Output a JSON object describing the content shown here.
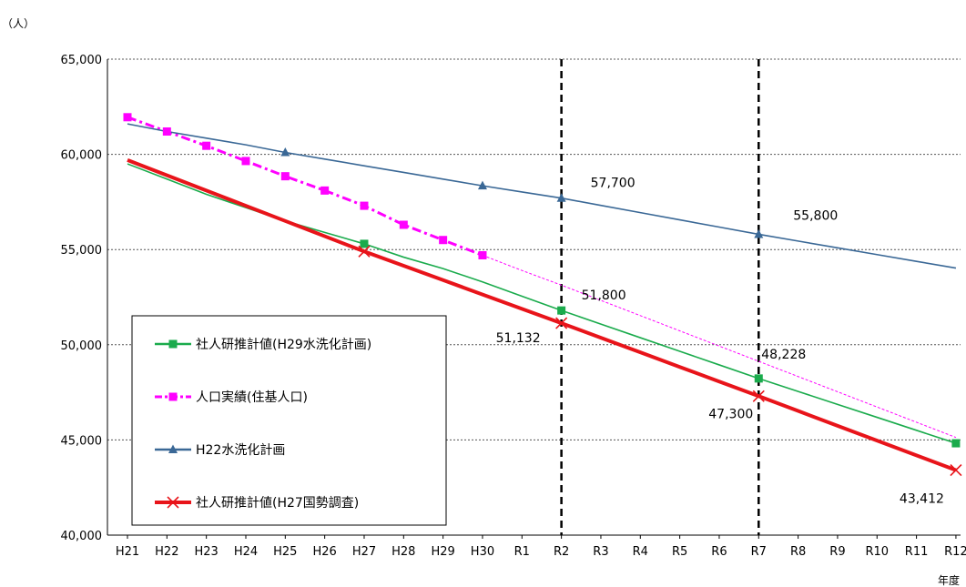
{
  "chart_data": {
    "type": "line",
    "title": "",
    "y_unit_label": "（人）",
    "x_unit_label": "年度",
    "categories": [
      "H21",
      "H22",
      "H23",
      "H24",
      "H25",
      "H26",
      "H27",
      "H28",
      "H29",
      "H30",
      "R1",
      "R2",
      "R3",
      "R4",
      "R5",
      "R6",
      "R7",
      "R8",
      "R9",
      "R10",
      "R11",
      "R12"
    ],
    "ylim": [
      40000,
      65000
    ],
    "yticks": [
      40000,
      45000,
      50000,
      55000,
      60000,
      65000
    ],
    "ytick_labels": [
      "40,000",
      "45,000",
      "50,000",
      "55,000",
      "60,000",
      "65,000"
    ],
    "grid": "horizontal dashed",
    "vertical_reference_lines": [
      "R2",
      "R7"
    ],
    "legend_position": "lower-left inside plot",
    "series": [
      {
        "name": "社人研推計値(H29水洗化計画)",
        "color": "#1aab4c",
        "style": "solid",
        "marker": "square",
        "values": [
          59500,
          58700,
          57900,
          57200,
          56500,
          55900,
          55300,
          54600,
          54000,
          53300,
          52550,
          51800,
          51085,
          50370,
          49656,
          48942,
          48228,
          47548,
          46867,
          46187,
          45506,
          44825
        ],
        "marker_indices": [
          6,
          11,
          16,
          21
        ]
      },
      {
        "name": "人口実績(住基人口)",
        "color": "#ff00ff",
        "style": "dash-dot",
        "marker": "square",
        "values": [
          61950,
          61200,
          60450,
          59650,
          58850,
          58100,
          57300,
          56300,
          55500,
          54700,
          53900,
          53130,
          52330,
          51530,
          50730,
          49930,
          49130,
          48330,
          47530,
          46730,
          45930,
          45130
        ],
        "solid_through_index": 9,
        "marker_indices": [
          0,
          1,
          2,
          3,
          4,
          5,
          6,
          7,
          8,
          9
        ]
      },
      {
        "name": "H22水洗化計画",
        "color": "#3a6896",
        "style": "solid",
        "marker": "triangle",
        "values": [
          61600,
          61200,
          60850,
          60500,
          60100,
          59750,
          59400,
          59050,
          58700,
          58350,
          58025,
          57700,
          57320,
          56940,
          56560,
          56180,
          55800,
          55445,
          55090,
          54735,
          54380,
          54025
        ],
        "marker_indices": [
          4,
          9,
          11,
          16
        ]
      },
      {
        "name": "社人研推計値(H27国勢調査)",
        "color": "#e8141a",
        "style": "solid-thick",
        "marker": "x",
        "values": [
          59700,
          58900,
          58100,
          57300,
          56500,
          55700,
          54900,
          54148,
          53394,
          52640,
          51886,
          51132,
          50366,
          49600,
          48833,
          48066,
          47300,
          46522,
          45744,
          44967,
          44190,
          43412
        ],
        "marker_indices": [
          6,
          11,
          16,
          21
        ]
      }
    ],
    "annotations": [
      {
        "text": "57,700",
        "category": "R2",
        "value": 57700
      },
      {
        "text": "55,800",
        "category": "R7",
        "value": 55800
      },
      {
        "text": "51,800",
        "category": "R2",
        "value": 51800
      },
      {
        "text": "51,132",
        "category": "R2",
        "value": 51132
      },
      {
        "text": "48,228",
        "category": "R7",
        "value": 48228
      },
      {
        "text": "47,300",
        "category": "R7",
        "value": 47300
      },
      {
        "text": "43,412",
        "category": "R12",
        "value": 43412
      }
    ]
  }
}
